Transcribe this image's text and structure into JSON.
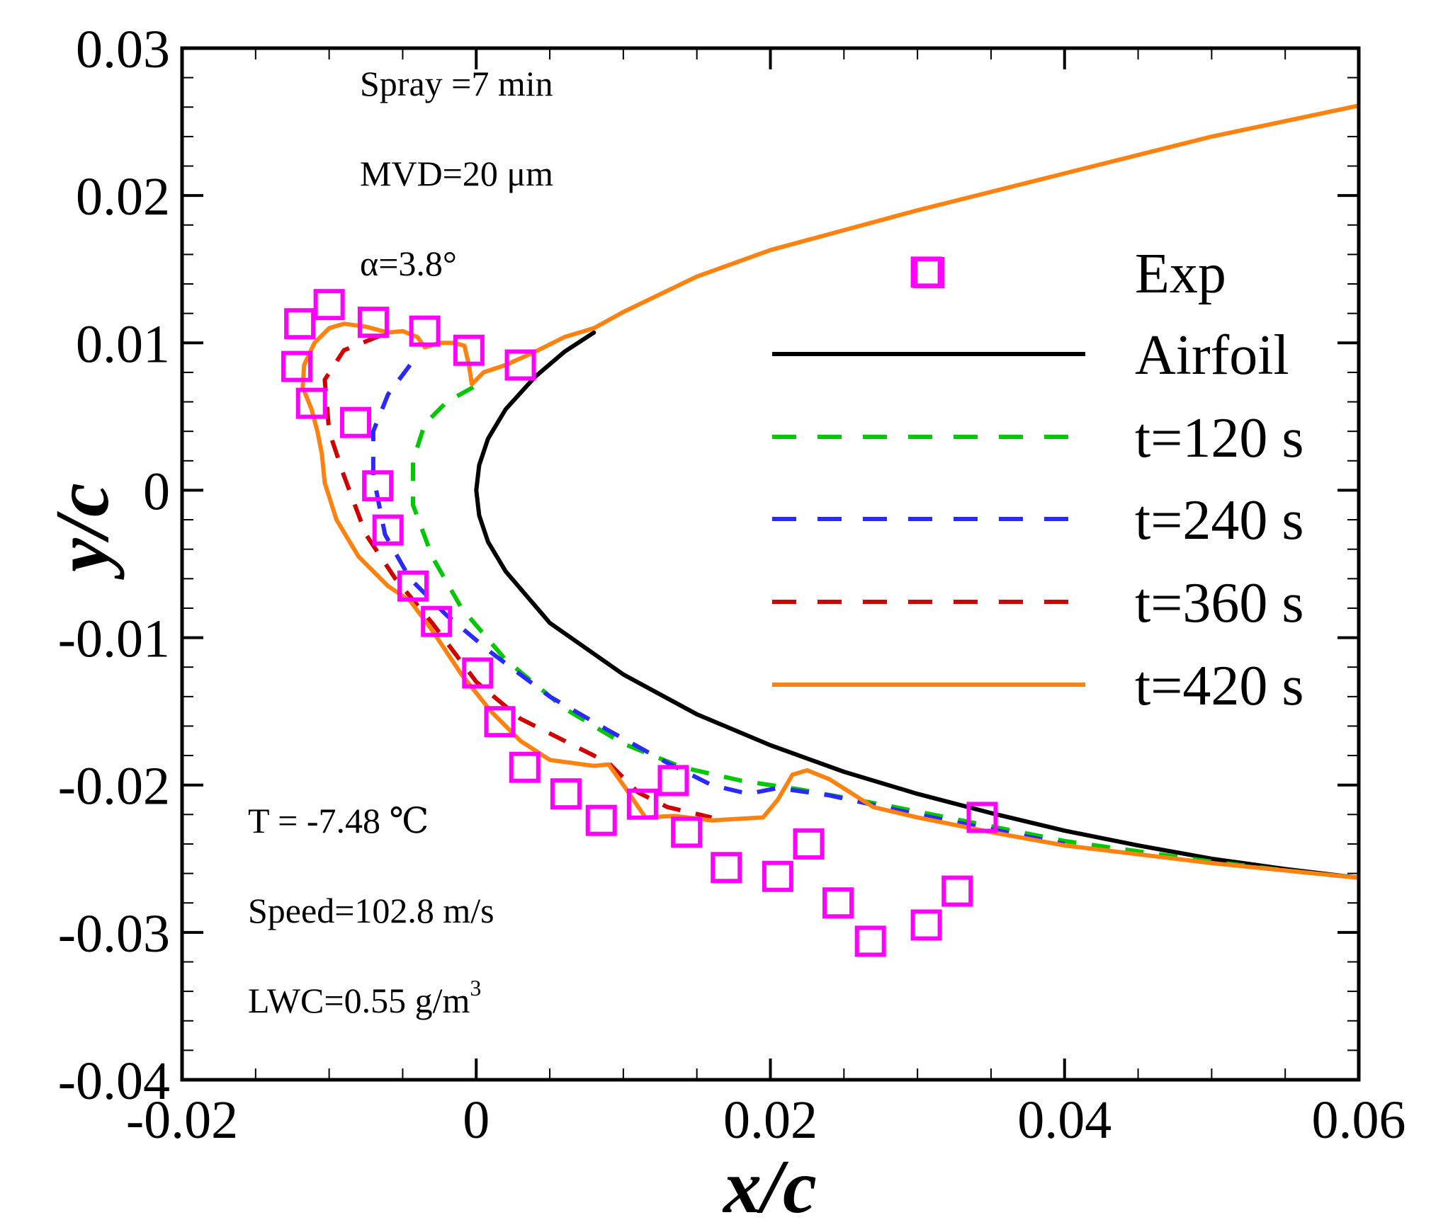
{
  "chart_data": {
    "type": "line",
    "xlabel": "x/c",
    "ylabel": "y/c",
    "xlim": [
      -0.02,
      0.06
    ],
    "ylim": [
      -0.04,
      0.03
    ],
    "x_major_ticks": [
      -0.02,
      0,
      0.02,
      0.04,
      0.06
    ],
    "x_tick_labels": [
      "-0.02",
      "0",
      "0.02",
      "0.04",
      "0.06"
    ],
    "y_major_ticks": [
      0.03,
      0.02,
      0.01,
      0,
      -0.01,
      -0.02,
      -0.03,
      -0.04
    ],
    "y_tick_labels": [
      "0.03",
      "0.02",
      "0.01",
      "0",
      "-0.01",
      "-0.02",
      "-0.03",
      "-0.04"
    ],
    "x_minor_step": 0.005,
    "y_minor_step": 0.002,
    "grid": false,
    "legend_position": "right",
    "annotations": {
      "spray": "Spray =7 min",
      "mvd": "MVD=20 μm",
      "alpha": "α=3.8°",
      "temperature": "T = -7.48 ℃",
      "speed": "Speed=102.8 m/s",
      "lwc_main": "LWC=0.55 g/m",
      "lwc_sup": "3"
    },
    "series": [
      {
        "name": "Exp",
        "label": "Exp",
        "style": "marker-square",
        "color": "#ff00ff",
        "points": [
          [
            -0.012,
            0.0113
          ],
          [
            -0.01,
            0.0126
          ],
          [
            -0.007,
            0.0114
          ],
          [
            -0.0035,
            0.0108
          ],
          [
            -0.0005,
            0.0095
          ],
          [
            0.003,
            0.0085
          ],
          [
            -0.0122,
            0.0084
          ],
          [
            -0.0112,
            0.0059
          ],
          [
            -0.0082,
            0.0046
          ],
          [
            -0.0067,
            0.0003
          ],
          [
            -0.006,
            -0.0027
          ],
          [
            -0.0043,
            -0.0065
          ],
          [
            -0.0027,
            -0.0089
          ],
          [
            0.0001,
            -0.0124
          ],
          [
            0.0016,
            -0.0157
          ],
          [
            0.0033,
            -0.0188
          ],
          [
            0.0061,
            -0.0206
          ],
          [
            0.0085,
            -0.0224
          ],
          [
            0.0113,
            -0.0213
          ],
          [
            0.0134,
            -0.0197
          ],
          [
            0.0143,
            -0.0232
          ],
          [
            0.017,
            -0.0256
          ],
          [
            0.0205,
            -0.0262
          ],
          [
            0.0226,
            -0.024
          ],
          [
            0.0246,
            -0.028
          ],
          [
            0.0268,
            -0.0306
          ],
          [
            0.0306,
            -0.0295
          ],
          [
            0.0327,
            -0.0272
          ],
          [
            0.0344,
            -0.0222
          ],
          [
            0.0306,
            0.0148
          ]
        ]
      },
      {
        "name": "Airfoil",
        "label": "Airfoil",
        "style": "solid",
        "color": "#000000",
        "points": [
          [
            0.008,
            0.0107
          ],
          [
            0.006,
            0.0094
          ],
          [
            0.004,
            0.0077
          ],
          [
            0.002,
            0.0055
          ],
          [
            0.0008,
            0.0035
          ],
          [
            0.0002,
            0.0017
          ],
          [
            0.0,
            0.0
          ],
          [
            0.0002,
            -0.0017
          ],
          [
            0.0008,
            -0.0035
          ],
          [
            0.002,
            -0.0055
          ],
          [
            0.005,
            -0.009
          ],
          [
            0.01,
            -0.0125
          ],
          [
            0.015,
            -0.0152
          ],
          [
            0.02,
            -0.0173
          ],
          [
            0.025,
            -0.0191
          ],
          [
            0.03,
            -0.0206
          ],
          [
            0.035,
            -0.0219
          ],
          [
            0.04,
            -0.0231
          ],
          [
            0.045,
            -0.0241
          ],
          [
            0.05,
            -0.025
          ],
          [
            0.055,
            -0.0257
          ],
          [
            0.06,
            -0.0263
          ]
        ]
      },
      {
        "name": "t=120 s",
        "label": "t=120 s",
        "style": "dashed",
        "color": "#00c800",
        "points": [
          [
            -0.0002,
            0.007
          ],
          [
            -0.002,
            0.006
          ],
          [
            -0.0035,
            0.0045
          ],
          [
            -0.0043,
            0.002
          ],
          [
            -0.0043,
            -0.001
          ],
          [
            -0.003,
            -0.0045
          ],
          [
            -0.001,
            -0.008
          ],
          [
            0.002,
            -0.0115
          ],
          [
            0.006,
            -0.0148
          ],
          [
            0.01,
            -0.0172
          ],
          [
            0.014,
            -0.0188
          ],
          [
            0.018,
            -0.0197
          ],
          [
            0.022,
            -0.0203
          ],
          [
            0.028,
            -0.0214
          ],
          [
            0.034,
            -0.0226
          ],
          [
            0.04,
            -0.0238
          ],
          [
            0.045,
            -0.0245
          ],
          [
            0.05,
            -0.0252
          ],
          [
            0.055,
            -0.0258
          ],
          [
            0.06,
            -0.0263
          ]
        ]
      },
      {
        "name": "t=240 s",
        "label": "t=240 s",
        "style": "dashed",
        "color": "#2a2aff",
        "points": [
          [
            -0.0045,
            0.0085
          ],
          [
            -0.006,
            0.0065
          ],
          [
            -0.007,
            0.004
          ],
          [
            -0.007,
            0.001
          ],
          [
            -0.0062,
            -0.003
          ],
          [
            -0.0045,
            -0.006
          ],
          [
            -0.002,
            -0.0085
          ],
          [
            0.001,
            -0.011
          ],
          [
            0.005,
            -0.014
          ],
          [
            0.009,
            -0.0163
          ],
          [
            0.013,
            -0.0185
          ],
          [
            0.016,
            -0.02
          ],
          [
            0.0185,
            -0.0206
          ],
          [
            0.0205,
            -0.0202
          ],
          [
            0.024,
            -0.0207
          ],
          [
            0.03,
            -0.022
          ],
          [
            0.035,
            -0.023
          ],
          [
            0.04,
            -0.024
          ]
        ]
      },
      {
        "name": "t=360 s",
        "label": "t=360 s",
        "style": "dashed",
        "color": "#d00000",
        "points": [
          [
            -0.0065,
            0.0105
          ],
          [
            -0.009,
            0.0095
          ],
          [
            -0.0103,
            0.0075
          ],
          [
            -0.01,
            0.004
          ],
          [
            -0.009,
            0.001
          ],
          [
            -0.0075,
            -0.003
          ],
          [
            -0.0055,
            -0.006
          ],
          [
            -0.003,
            -0.009
          ],
          [
            0.0,
            -0.013
          ],
          [
            0.003,
            -0.0155
          ],
          [
            0.006,
            -0.017
          ],
          [
            0.009,
            -0.0185
          ],
          [
            0.011,
            -0.0205
          ],
          [
            0.013,
            -0.0215
          ],
          [
            0.016,
            -0.0222
          ]
        ]
      },
      {
        "name": "t=420 s",
        "label": "t=420 s",
        "style": "solid",
        "color": "#ff8210",
        "points": [
          [
            0.06,
            0.0261
          ],
          [
            0.05,
            0.024
          ],
          [
            0.04,
            0.0215
          ],
          [
            0.03,
            0.019
          ],
          [
            0.02,
            0.0163
          ],
          [
            0.015,
            0.0145
          ],
          [
            0.01,
            0.0121
          ],
          [
            0.008,
            0.011
          ],
          [
            0.006,
            0.0104
          ],
          [
            0.004,
            0.0094
          ],
          [
            0.002,
            0.0085
          ],
          [
            0.0005,
            0.008
          ],
          [
            -0.0003,
            0.0072
          ],
          [
            -0.0005,
            0.0085
          ],
          [
            -0.0008,
            0.0098
          ],
          [
            -0.0015,
            0.01
          ],
          [
            -0.0025,
            0.01
          ],
          [
            -0.0035,
            0.0097
          ],
          [
            -0.004,
            0.0104
          ],
          [
            -0.005,
            0.0108
          ],
          [
            -0.006,
            0.0107
          ],
          [
            -0.0075,
            0.0111
          ],
          [
            -0.009,
            0.0113
          ],
          [
            -0.01,
            0.011
          ],
          [
            -0.011,
            0.01
          ],
          [
            -0.0117,
            0.0085
          ],
          [
            -0.0118,
            0.007
          ],
          [
            -0.0112,
            0.0055
          ],
          [
            -0.0108,
            0.004
          ],
          [
            -0.0105,
            0.0025
          ],
          [
            -0.0103,
            0.0005
          ],
          [
            -0.0095,
            -0.002
          ],
          [
            -0.008,
            -0.0045
          ],
          [
            -0.006,
            -0.0065
          ],
          [
            -0.0045,
            -0.0075
          ],
          [
            -0.003,
            -0.0095
          ],
          [
            -0.001,
            -0.0125
          ],
          [
            0.001,
            -0.015
          ],
          [
            0.003,
            -0.017
          ],
          [
            0.005,
            -0.0183
          ],
          [
            0.008,
            -0.0187
          ],
          [
            0.009,
            -0.0186
          ],
          [
            0.01,
            -0.02
          ],
          [
            0.0115,
            -0.0222
          ],
          [
            0.0135,
            -0.0221
          ],
          [
            0.016,
            -0.0224
          ],
          [
            0.0195,
            -0.0222
          ],
          [
            0.0205,
            -0.021
          ],
          [
            0.0215,
            -0.0193
          ],
          [
            0.0225,
            -0.019
          ],
          [
            0.024,
            -0.0196
          ],
          [
            0.027,
            -0.0215
          ],
          [
            0.03,
            -0.0222
          ],
          [
            0.032,
            -0.0226
          ],
          [
            0.035,
            -0.0232
          ],
          [
            0.04,
            -0.0241
          ],
          [
            0.05,
            -0.0253
          ],
          [
            0.06,
            -0.0263
          ]
        ]
      }
    ]
  }
}
